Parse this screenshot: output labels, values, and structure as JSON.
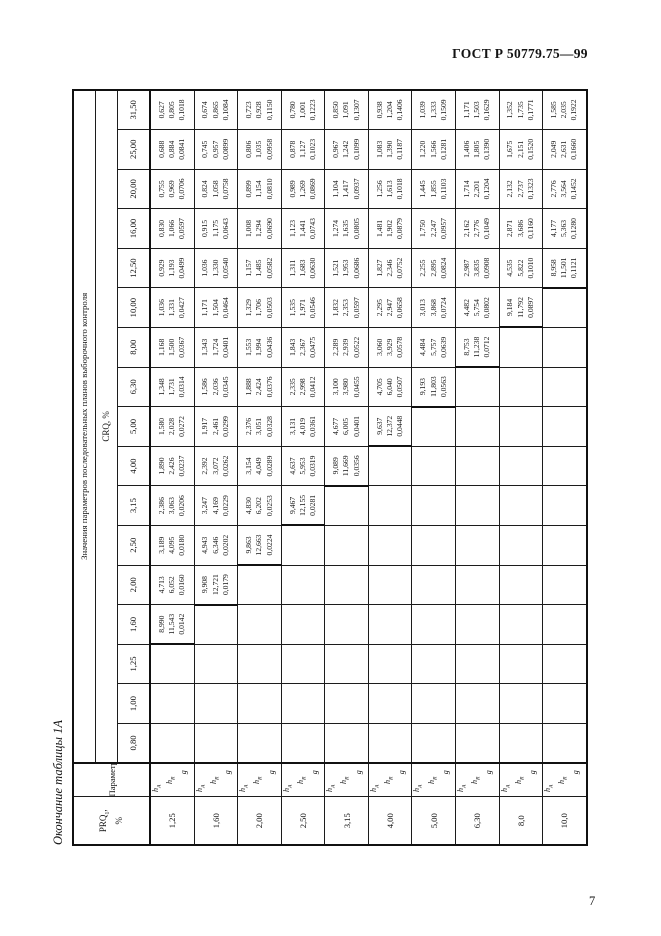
{
  "page": {
    "header": "ГОСТ Р 50779.75—99",
    "page_number": "7",
    "caption": "Окончание таблицы 1А"
  },
  "table": {
    "prq_label": "PRQ",
    "prq_sub": "1",
    "prq_comma": ",",
    "prq_unit": "%",
    "col2_header": "Параметры",
    "span_header": "Значения параметров последовательных планов выборочного контроля",
    "crq_header": "CRQ, %",
    "crq_values": [
      "0,80",
      "1,00",
      "1,25",
      "1,60",
      "2,00",
      "2,50",
      "3,15",
      "4,00",
      "5,00",
      "6,30",
      "8,00",
      "10,00",
      "12,50",
      "16,00",
      "20,00",
      "25,00",
      "31,50"
    ],
    "param_labels": [
      {
        "base": "h",
        "sub": "A"
      },
      {
        "base": "h",
        "sub": "R"
      },
      {
        "base": "g",
        "sub": ""
      }
    ],
    "rows": [
      {
        "prq": "1,25",
        "cells": [
          null,
          null,
          null,
          [
            "8,990",
            "11,543",
            "0,0142"
          ],
          [
            "4,713",
            "6,052",
            "0,0160"
          ],
          [
            "3,189",
            "4,095",
            "0,0180"
          ],
          [
            "2,386",
            "3,063",
            "0,0206"
          ],
          [
            "1,890",
            "2,426",
            "0,0237"
          ],
          [
            "1,580",
            "2,028",
            "0,0272"
          ],
          [
            "1,348",
            "1,731",
            "0,0314"
          ],
          [
            "1,168",
            "1,500",
            "0,0367"
          ],
          [
            "1,036",
            "1,331",
            "0,0427"
          ],
          [
            "0,929",
            "1,193",
            "0,0499"
          ],
          [
            "0,830",
            "1,066",
            "0,0597"
          ],
          [
            "0,755",
            "0,969",
            "0,0706"
          ],
          [
            "0,688",
            "0,884",
            "0,0841"
          ],
          [
            "0,627",
            "0,805",
            "0,1018"
          ]
        ]
      },
      {
        "prq": "1,60",
        "cells": [
          null,
          null,
          null,
          null,
          [
            "9,908",
            "12,721",
            "0,0179"
          ],
          [
            "4,943",
            "6,346",
            "0,0202"
          ],
          [
            "3,247",
            "4,169",
            "0,0229"
          ],
          [
            "2,392",
            "3,072",
            "0,0262"
          ],
          [
            "1,917",
            "2,461",
            "0,0299"
          ],
          [
            "1,586",
            "2,036",
            "0,0345"
          ],
          [
            "1,343",
            "1,724",
            "0,0401"
          ],
          [
            "1,171",
            "1,504",
            "0,0464"
          ],
          [
            "1,036",
            "1,330",
            "0,0540"
          ],
          [
            "0,915",
            "1,175",
            "0,0643"
          ],
          [
            "0,824",
            "1,058",
            "0,0758"
          ],
          [
            "0,745",
            "0,957",
            "0,0899"
          ],
          [
            "0,674",
            "0,865",
            "0,1084"
          ]
        ]
      },
      {
        "prq": "2,00",
        "cells": [
          null,
          null,
          null,
          null,
          null,
          [
            "9,863",
            "12,663",
            "0,0224"
          ],
          [
            "4,830",
            "6,202",
            "0,0253"
          ],
          [
            "3,154",
            "4,049",
            "0,0289"
          ],
          [
            "2,376",
            "3,051",
            "0,0328"
          ],
          [
            "1,888",
            "2,424",
            "0,0376"
          ],
          [
            "1,553",
            "1,994",
            "0,0436"
          ],
          [
            "1,329",
            "1,706",
            "0,0503"
          ],
          [
            "1,157",
            "1,485",
            "0,0582"
          ],
          [
            "1,008",
            "1,294",
            "0,0690"
          ],
          [
            "0,899",
            "1,154",
            "0,0810"
          ],
          [
            "0,806",
            "1,035",
            "0,0958"
          ],
          [
            "0,723",
            "0,928",
            "0,1150"
          ]
        ]
      },
      {
        "prq": "2,50",
        "cells": [
          null,
          null,
          null,
          null,
          null,
          null,
          [
            "9,467",
            "12,155",
            "0,0281"
          ],
          [
            "4,637",
            "5,953",
            "0,0319"
          ],
          [
            "3,131",
            "4,019",
            "0,0361"
          ],
          [
            "2,335",
            "2,998",
            "0,0412"
          ],
          [
            "1,843",
            "2,367",
            "0,0475"
          ],
          [
            "1,535",
            "1,971",
            "0,0546"
          ],
          [
            "1,311",
            "1,683",
            "0,0630"
          ],
          [
            "1,123",
            "1,441",
            "0,0743"
          ],
          [
            "0,989",
            "1,269",
            "0,0869"
          ],
          [
            "0,878",
            "1,127",
            "0,1023"
          ],
          [
            "0,780",
            "1,001",
            "0,1223"
          ]
        ]
      },
      {
        "prq": "3,15",
        "cells": [
          null,
          null,
          null,
          null,
          null,
          null,
          null,
          [
            "9,089",
            "11,669",
            "0,0356"
          ],
          [
            "4,677",
            "6,005",
            "0,0401"
          ],
          [
            "3,100",
            "3,980",
            "0,0455"
          ],
          [
            "2,289",
            "2,939",
            "0,0522"
          ],
          [
            "1,832",
            "2,353",
            "0,0597"
          ],
          [
            "1,521",
            "1,953",
            "0,0686"
          ],
          [
            "1,274",
            "1,635",
            "0,0805"
          ],
          [
            "1,104",
            "1,417",
            "0,0937"
          ],
          [
            "0,967",
            "1,242",
            "0,1099"
          ],
          [
            "0,850",
            "1,091",
            "0,1307"
          ]
        ]
      },
      {
        "prq": "4,00",
        "cells": [
          null,
          null,
          null,
          null,
          null,
          null,
          null,
          null,
          [
            "9,637",
            "12,372",
            "0,0448"
          ],
          [
            "4,705",
            "6,040",
            "0,0507"
          ],
          [
            "3,060",
            "3,929",
            "0,0578"
          ],
          [
            "2,295",
            "2,947",
            "0,0658"
          ],
          [
            "1,827",
            "2,346",
            "0,0752"
          ],
          [
            "1,481",
            "1,902",
            "0,0879"
          ],
          [
            "1,256",
            "1,613",
            "0,1018"
          ],
          [
            "1,083",
            "1,390",
            "0,1187"
          ],
          [
            "0,938",
            "1,204",
            "0,1406"
          ]
        ]
      },
      {
        "prq": "5,00",
        "cells": [
          null,
          null,
          null,
          null,
          null,
          null,
          null,
          null,
          null,
          [
            "9,193",
            "11,803",
            "0,0563"
          ],
          [
            "4,484",
            "5,757",
            "0,0639"
          ],
          [
            "3,013",
            "3,868",
            "0,0724"
          ],
          [
            "2,255",
            "2,895",
            "0,0824"
          ],
          [
            "1,750",
            "2,247",
            "0,0957"
          ],
          [
            "1,445",
            "1,855",
            "0,1103"
          ],
          [
            "1,220",
            "1,566",
            "0,1281"
          ],
          [
            "1,039",
            "1,333",
            "0,1509"
          ]
        ]
      },
      {
        "prq": "6,30",
        "cells": [
          null,
          null,
          null,
          null,
          null,
          null,
          null,
          null,
          null,
          null,
          [
            "8,753",
            "11,238",
            "0,0712"
          ],
          [
            "4,482",
            "5,754",
            "0,0802"
          ],
          [
            "2,987",
            "3,835",
            "0,0908"
          ],
          [
            "2,162",
            "2,776",
            "0,1049"
          ],
          [
            "1,714",
            "2,201",
            "0,1204"
          ],
          [
            "1,406",
            "1,805",
            "0,1390"
          ],
          [
            "1,171",
            "1,503",
            "0,1629"
          ]
        ]
      },
      {
        "prq": "8,0",
        "cells": [
          null,
          null,
          null,
          null,
          null,
          null,
          null,
          null,
          null,
          null,
          null,
          [
            "9,184",
            "11,792",
            "0,0897"
          ],
          [
            "4,535",
            "5,822",
            "0,1010"
          ],
          [
            "2,871",
            "3,686",
            "0,1160"
          ],
          [
            "2,132",
            "2,737",
            "0,1323"
          ],
          [
            "1,675",
            "2,151",
            "0,1520"
          ],
          [
            "1,352",
            "1,735",
            "0,1771"
          ]
        ]
      },
      {
        "prq": "10,0",
        "cells": [
          null,
          null,
          null,
          null,
          null,
          null,
          null,
          null,
          null,
          null,
          null,
          null,
          [
            "8,958",
            "11,501",
            "0,1121"
          ],
          [
            "4,177",
            "5,363",
            "0,1280"
          ],
          [
            "2,776",
            "3,564",
            "0,1452"
          ],
          [
            "2,049",
            "2,631",
            "0,1660"
          ],
          [
            "1,585",
            "2,035",
            "0,1922"
          ]
        ]
      }
    ]
  }
}
